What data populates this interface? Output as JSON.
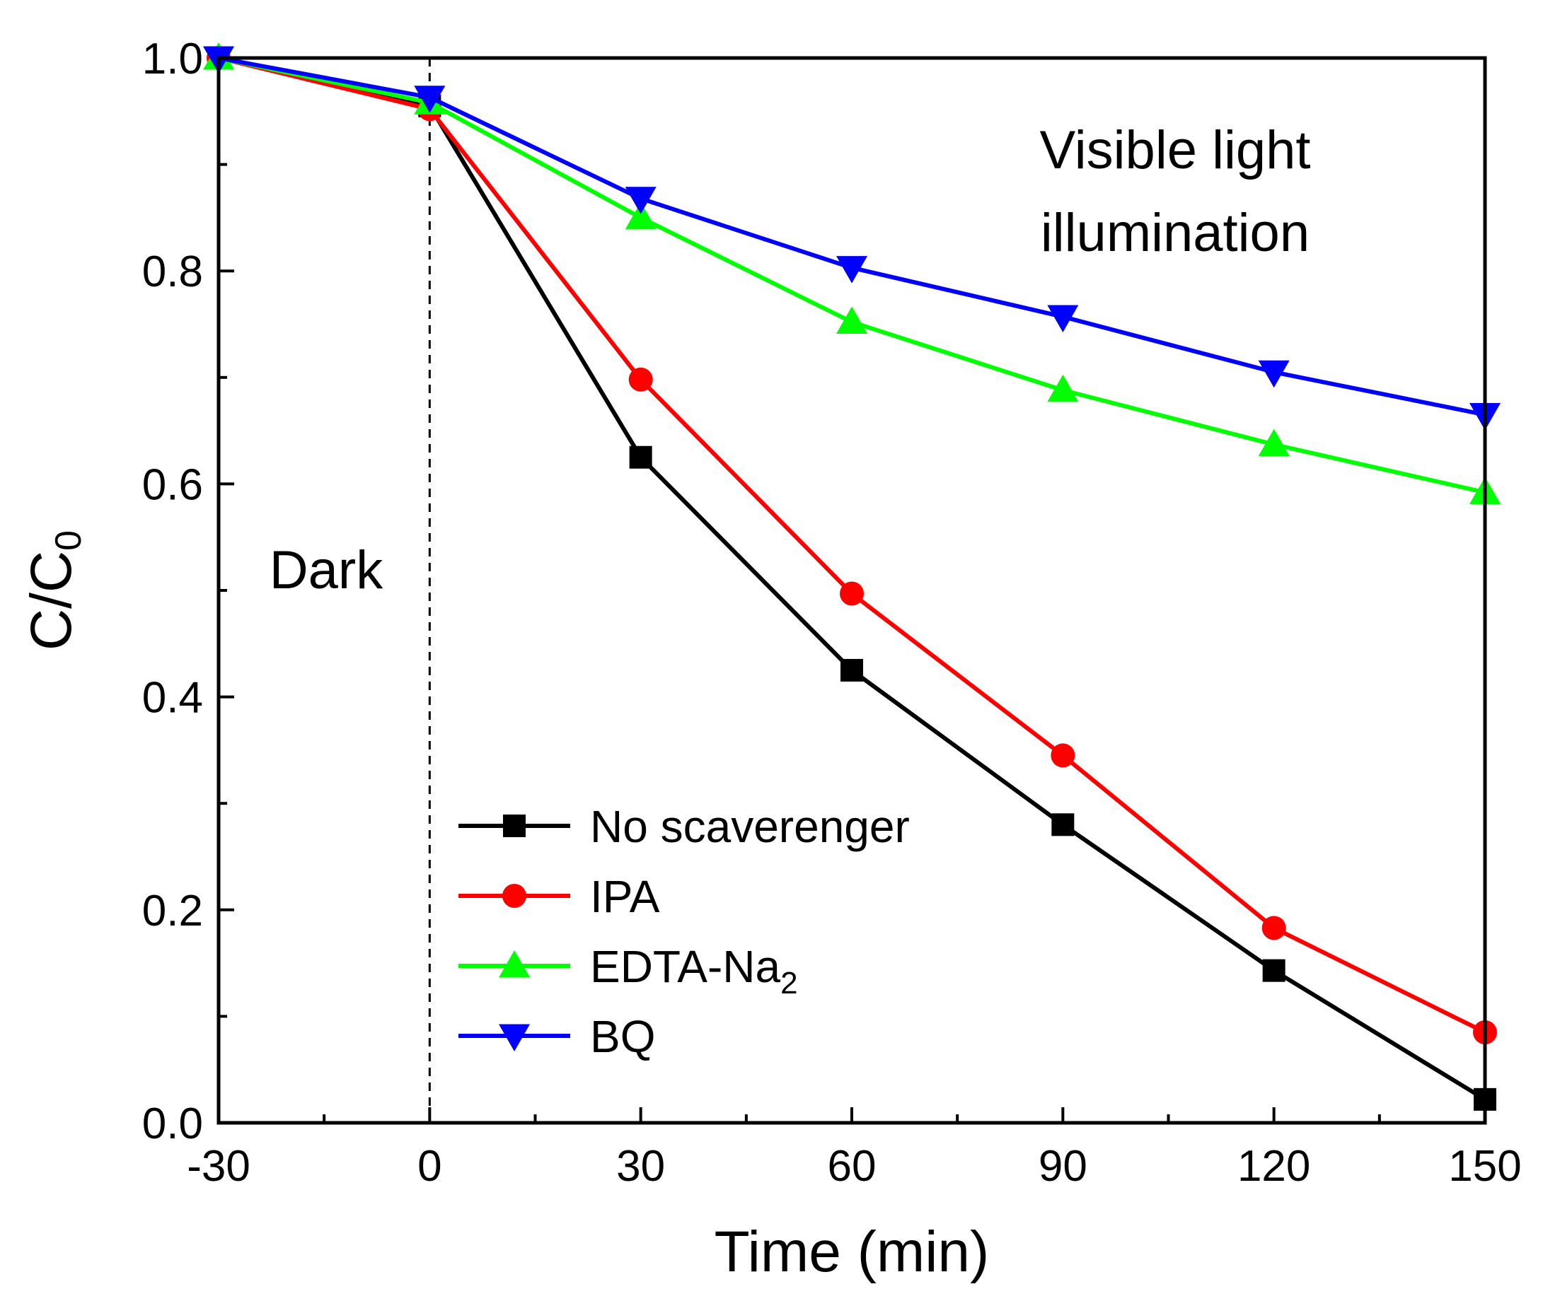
{
  "chart_data": {
    "type": "line",
    "title": "",
    "xlabel": "Time (min)",
    "ylabel_main": "C/C",
    "ylabel_sub": "0",
    "xlim": [
      -30,
      150
    ],
    "ylim": [
      0.0,
      1.0
    ],
    "x_ticks": [
      -30,
      0,
      30,
      60,
      90,
      120,
      150
    ],
    "x_tick_labels": [
      "-30",
      "0",
      "30",
      "60",
      "90",
      "120",
      "150"
    ],
    "y_ticks": [
      0.0,
      0.2,
      0.4,
      0.6,
      0.8,
      1.0
    ],
    "y_tick_labels": [
      "0.0",
      "0.2",
      "0.4",
      "0.6",
      "0.8",
      "1.0"
    ],
    "x": [
      -30,
      0,
      30,
      60,
      90,
      120,
      150
    ],
    "grid": false,
    "legend_position": "bottom-left",
    "divider_x": 0,
    "annotations": {
      "dark": "Dark",
      "light_line1": "Visible light",
      "light_line2": "illumination"
    },
    "series": [
      {
        "name": "No scaverenger",
        "name_sub": "",
        "color": "#000000",
        "marker": "square",
        "values": [
          1.0,
          0.955,
          0.625,
          0.425,
          0.28,
          0.143,
          0.022
        ]
      },
      {
        "name": "IPA",
        "name_sub": "",
        "color": "#ff0000",
        "marker": "circle",
        "values": [
          1.0,
          0.952,
          0.698,
          0.497,
          0.345,
          0.183,
          0.085
        ]
      },
      {
        "name": "EDTA-Na",
        "name_sub": "2",
        "color": "#00ff00",
        "marker": "triangle-up",
        "values": [
          1.0,
          0.958,
          0.85,
          0.752,
          0.688,
          0.637,
          0.592
        ]
      },
      {
        "name": "BQ",
        "name_sub": "",
        "color": "#0000ff",
        "marker": "triangle-down",
        "values": [
          1.0,
          0.963,
          0.868,
          0.803,
          0.757,
          0.705,
          0.665
        ]
      }
    ]
  }
}
